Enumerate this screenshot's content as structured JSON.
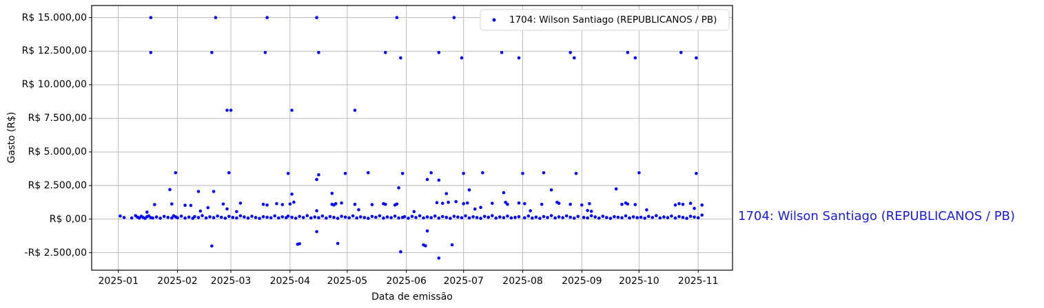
{
  "side_label": {
    "text": "1704: Wilson Santiago (REPUBLICANOS / PB)",
    "color": "#1a1ae0"
  },
  "chart_data": {
    "type": "scatter",
    "title": "",
    "xlabel": "Data de emissão",
    "ylabel": "Gasto (R$)",
    "x_unit": "days since 2025-01-01",
    "xlim": [
      -14,
      322
    ],
    "ylim": [
      -3800,
      15900
    ],
    "grid": true,
    "grid_color": "#b4b4b4",
    "point_color": "#0000ff",
    "frame_color": "#000000",
    "legend": {
      "position": "upper right",
      "border_color": "#d5d5d5",
      "entries": [
        {
          "label": "1704: Wilson Santiago (REPUBLICANOS / PB)",
          "color": "#0000ff",
          "marker": "point"
        }
      ]
    },
    "x_ticks": [
      {
        "day": 0,
        "label": "2025-01"
      },
      {
        "day": 31,
        "label": "2025-02"
      },
      {
        "day": 59,
        "label": "2025-03"
      },
      {
        "day": 90,
        "label": "2025-04"
      },
      {
        "day": 120,
        "label": "2025-05"
      },
      {
        "day": 151,
        "label": "2025-06"
      },
      {
        "day": 181,
        "label": "2025-07"
      },
      {
        "day": 212,
        "label": "2025-08"
      },
      {
        "day": 243,
        "label": "2025-09"
      },
      {
        "day": 273,
        "label": "2025-10"
      },
      {
        "day": 304,
        "label": "2025-11"
      }
    ],
    "y_ticks": [
      {
        "value": 15000,
        "label": "R$ 15.000,00"
      },
      {
        "value": 12500,
        "label": "R$ 12.500,00"
      },
      {
        "value": 10000,
        "label": "R$ 10.000,00"
      },
      {
        "value": 7500,
        "label": "R$ 7.500,00"
      },
      {
        "value": 5000,
        "label": "R$ 5.000,00"
      },
      {
        "value": 2500,
        "label": "R$ 2.500,00"
      },
      {
        "value": 0,
        "label": "R$ 0,00"
      },
      {
        "value": -2500,
        "label": "-R$ 2.500,00"
      }
    ],
    "series": [
      {
        "name": "1704: Wilson Santiago (REPUBLICANOS / PB)",
        "color": "#0000ff",
        "points": [
          [
            17,
            15000
          ],
          [
            51,
            15000
          ],
          [
            78,
            15000
          ],
          [
            104,
            15000
          ],
          [
            146,
            15000
          ],
          [
            176,
            15000
          ],
          [
            17,
            12400
          ],
          [
            49,
            12400
          ],
          [
            77,
            12400
          ],
          [
            105,
            12400
          ],
          [
            140,
            12400
          ],
          [
            168,
            12400
          ],
          [
            201,
            12400
          ],
          [
            237,
            12400
          ],
          [
            267,
            12400
          ],
          [
            295,
            12400
          ],
          [
            148,
            12000
          ],
          [
            180,
            12000
          ],
          [
            210,
            12000
          ],
          [
            239,
            12000
          ],
          [
            271,
            12000
          ],
          [
            303,
            12000
          ],
          [
            57,
            8100
          ],
          [
            59,
            8100
          ],
          [
            91,
            8100
          ],
          [
            124,
            8100
          ],
          [
            30,
            3450
          ],
          [
            58,
            3450
          ],
          [
            89,
            3400
          ],
          [
            105,
            3300
          ],
          [
            119,
            3400
          ],
          [
            131,
            3450
          ],
          [
            149,
            3400
          ],
          [
            164,
            3450
          ],
          [
            181,
            3400
          ],
          [
            191,
            3450
          ],
          [
            212,
            3400
          ],
          [
            223,
            3450
          ],
          [
            240,
            3400
          ],
          [
            273,
            3450
          ],
          [
            303,
            3400
          ],
          [
            104,
            2950
          ],
          [
            162,
            2950
          ],
          [
            168,
            2900
          ],
          [
            147,
            2330
          ],
          [
            27,
            2200
          ],
          [
            42,
            2060
          ],
          [
            50,
            2060
          ],
          [
            91,
            1860
          ],
          [
            112,
            1915
          ],
          [
            172,
            1900
          ],
          [
            184,
            2170
          ],
          [
            202,
            1970
          ],
          [
            227,
            2170
          ],
          [
            261,
            2250
          ],
          [
            19,
            1080
          ],
          [
            28,
            1130
          ],
          [
            35,
            1030
          ],
          [
            38,
            1020
          ],
          [
            47,
            850
          ],
          [
            55,
            1120
          ],
          [
            64,
            1190
          ],
          [
            76,
            1100
          ],
          [
            78,
            1050
          ],
          [
            83,
            1150
          ],
          [
            86,
            1080
          ],
          [
            90,
            1120
          ],
          [
            92,
            1260
          ],
          [
            112,
            1100
          ],
          [
            113,
            1050
          ],
          [
            114,
            1150
          ],
          [
            117,
            1200
          ],
          [
            124,
            1100
          ],
          [
            133,
            1080
          ],
          [
            139,
            1150
          ],
          [
            140,
            1100
          ],
          [
            145,
            1050
          ],
          [
            146,
            1120
          ],
          [
            167,
            1230
          ],
          [
            170,
            1180
          ],
          [
            173,
            1250
          ],
          [
            177,
            1300
          ],
          [
            181,
            1150
          ],
          [
            183,
            1200
          ],
          [
            196,
            1180
          ],
          [
            203,
            1250
          ],
          [
            204,
            1100
          ],
          [
            210,
            1200
          ],
          [
            213,
            1150
          ],
          [
            222,
            1100
          ],
          [
            230,
            1250
          ],
          [
            231,
            1180
          ],
          [
            237,
            1100
          ],
          [
            243,
            1050
          ],
          [
            247,
            1150
          ],
          [
            264,
            1100
          ],
          [
            266,
            1200
          ],
          [
            267,
            1120
          ],
          [
            271,
            1080
          ],
          [
            292,
            1050
          ],
          [
            294,
            1150
          ],
          [
            296,
            1100
          ],
          [
            300,
            1180
          ],
          [
            306,
            1050
          ],
          [
            15,
            520
          ],
          [
            43,
            600
          ],
          [
            57,
            760
          ],
          [
            62,
            560
          ],
          [
            104,
            620
          ],
          [
            126,
            700
          ],
          [
            155,
            560
          ],
          [
            187,
            750
          ],
          [
            190,
            870
          ],
          [
            216,
            620
          ],
          [
            246,
            640
          ],
          [
            248,
            580
          ],
          [
            277,
            690
          ],
          [
            302,
            800
          ],
          [
            1,
            230
          ],
          [
            3,
            120
          ],
          [
            7,
            90
          ],
          [
            9,
            260
          ],
          [
            10,
            150
          ],
          [
            11,
            80
          ],
          [
            12,
            210
          ],
          [
            13,
            130
          ],
          [
            14,
            60
          ],
          [
            15,
            180
          ],
          [
            16,
            240
          ],
          [
            17,
            110
          ],
          [
            18,
            90
          ],
          [
            20,
            160
          ],
          [
            22,
            70
          ],
          [
            24,
            200
          ],
          [
            26,
            130
          ],
          [
            28,
            90
          ],
          [
            29,
            250
          ],
          [
            30,
            170
          ],
          [
            31,
            100
          ],
          [
            33,
            220
          ],
          [
            35,
            80
          ],
          [
            37,
            150
          ],
          [
            39,
            60
          ],
          [
            40,
            190
          ],
          [
            42,
            120
          ],
          [
            44,
            260
          ],
          [
            46,
            90
          ],
          [
            48,
            170
          ],
          [
            50,
            110
          ],
          [
            52,
            230
          ],
          [
            54,
            140
          ],
          [
            56,
            70
          ],
          [
            58,
            200
          ],
          [
            60,
            130
          ],
          [
            62,
            90
          ],
          [
            64,
            250
          ],
          [
            66,
            160
          ],
          [
            68,
            80
          ],
          [
            70,
            210
          ],
          [
            72,
            120
          ],
          [
            74,
            60
          ],
          [
            76,
            180
          ],
          [
            78,
            140
          ],
          [
            80,
            100
          ],
          [
            82,
            240
          ],
          [
            84,
            90
          ],
          [
            86,
            170
          ],
          [
            88,
            110
          ],
          [
            89,
            220
          ],
          [
            91,
            140
          ],
          [
            93,
            70
          ],
          [
            95,
            200
          ],
          [
            97,
            120
          ],
          [
            99,
            260
          ],
          [
            101,
            90
          ],
          [
            103,
            160
          ],
          [
            105,
            110
          ],
          [
            107,
            230
          ],
          [
            109,
            80
          ],
          [
            111,
            190
          ],
          [
            113,
            130
          ],
          [
            115,
            60
          ],
          [
            117,
            210
          ],
          [
            119,
            150
          ],
          [
            121,
            100
          ],
          [
            123,
            240
          ],
          [
            125,
            90
          ],
          [
            127,
            170
          ],
          [
            129,
            120
          ],
          [
            131,
            60
          ],
          [
            133,
            200
          ],
          [
            135,
            140
          ],
          [
            137,
            250
          ],
          [
            139,
            80
          ],
          [
            141,
            160
          ],
          [
            143,
            110
          ],
          [
            145,
            220
          ],
          [
            147,
            90
          ],
          [
            149,
            130
          ],
          [
            150,
            180
          ],
          [
            152,
            70
          ],
          [
            154,
            200
          ],
          [
            156,
            120
          ],
          [
            158,
            250
          ],
          [
            160,
            90
          ],
          [
            162,
            160
          ],
          [
            164,
            110
          ],
          [
            166,
            230
          ],
          [
            168,
            80
          ],
          [
            170,
            190
          ],
          [
            172,
            130
          ],
          [
            174,
            60
          ],
          [
            176,
            210
          ],
          [
            178,
            150
          ],
          [
            180,
            100
          ],
          [
            182,
            240
          ],
          [
            184,
            90
          ],
          [
            186,
            170
          ],
          [
            188,
            120
          ],
          [
            190,
            60
          ],
          [
            192,
            200
          ],
          [
            194,
            140
          ],
          [
            196,
            260
          ],
          [
            198,
            80
          ],
          [
            200,
            160
          ],
          [
            202,
            110
          ],
          [
            204,
            220
          ],
          [
            206,
            90
          ],
          [
            208,
            130
          ],
          [
            210,
            180
          ],
          [
            213,
            100
          ],
          [
            215,
            230
          ],
          [
            217,
            80
          ],
          [
            219,
            150
          ],
          [
            221,
            60
          ],
          [
            223,
            190
          ],
          [
            225,
            120
          ],
          [
            227,
            260
          ],
          [
            229,
            90
          ],
          [
            231,
            170
          ],
          [
            233,
            110
          ],
          [
            235,
            240
          ],
          [
            237,
            140
          ],
          [
            239,
            70
          ],
          [
            241,
            200
          ],
          [
            244,
            130
          ],
          [
            246,
            90
          ],
          [
            248,
            250
          ],
          [
            250,
            160
          ],
          [
            252,
            80
          ],
          [
            254,
            210
          ],
          [
            256,
            120
          ],
          [
            258,
            60
          ],
          [
            260,
            180
          ],
          [
            262,
            140
          ],
          [
            264,
            100
          ],
          [
            266,
            240
          ],
          [
            268,
            90
          ],
          [
            270,
            170
          ],
          [
            272,
            110
          ],
          [
            274,
            140
          ],
          [
            276,
            70
          ],
          [
            278,
            200
          ],
          [
            280,
            120
          ],
          [
            282,
            260
          ],
          [
            284,
            90
          ],
          [
            286,
            160
          ],
          [
            288,
            110
          ],
          [
            290,
            230
          ],
          [
            292,
            80
          ],
          [
            294,
            190
          ],
          [
            296,
            130
          ],
          [
            298,
            60
          ],
          [
            300,
            210
          ],
          [
            302,
            150
          ],
          [
            304,
            100
          ],
          [
            306,
            300
          ],
          [
            49,
            -2000
          ],
          [
            94,
            -1870
          ],
          [
            95,
            -1830
          ],
          [
            104,
            -930
          ],
          [
            115,
            -1810
          ],
          [
            148,
            -2430
          ],
          [
            160,
            -1915
          ],
          [
            161,
            -1985
          ],
          [
            162,
            -880
          ],
          [
            168,
            -2900
          ],
          [
            175,
            -1915
          ]
        ]
      }
    ]
  }
}
